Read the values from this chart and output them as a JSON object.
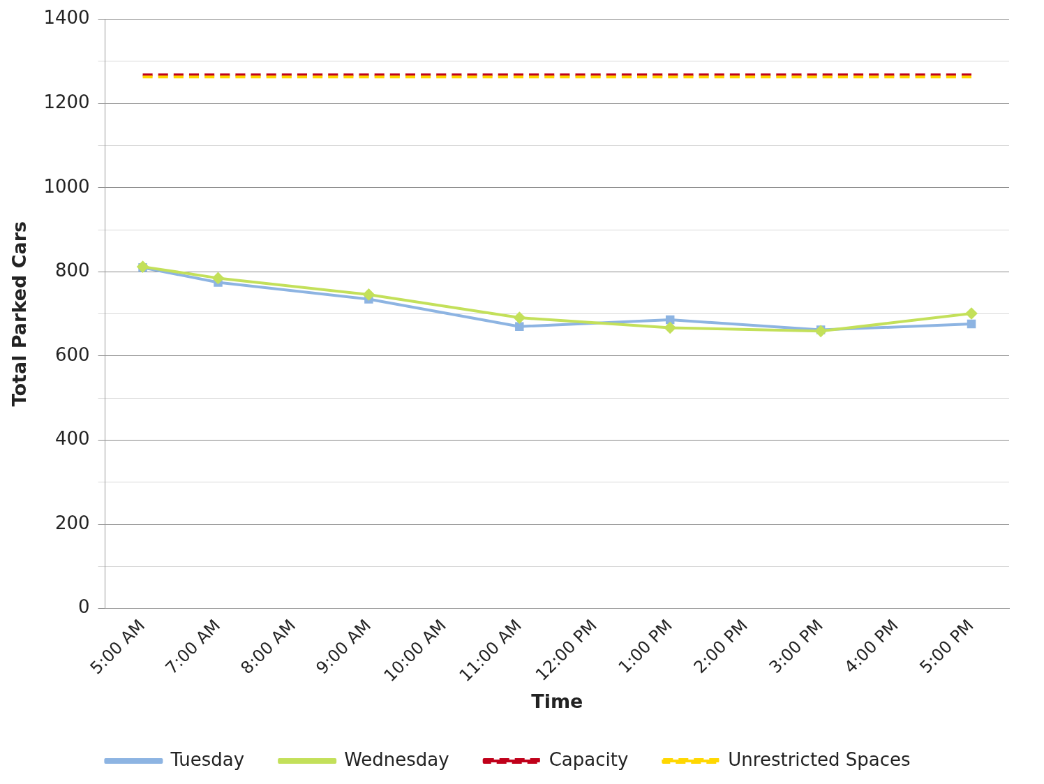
{
  "chart_data": {
    "type": "line",
    "xlabel": "Time",
    "ylabel": "Total Parked Cars",
    "categories": [
      "5:00 AM",
      "7:00 AM",
      "8:00 AM",
      "9:00 AM",
      "10:00 AM",
      "11:00 AM",
      "12:00 PM",
      "1:00 PM",
      "2:00 PM",
      "3:00 PM",
      "4:00 PM",
      "5:00 PM"
    ],
    "series": [
      {
        "name": "Tuesday",
        "color": "#8db4e2",
        "marker": "square",
        "line_style": "solid",
        "values": [
          810,
          775,
          null,
          735,
          null,
          670,
          null,
          686,
          null,
          662,
          null,
          676
        ]
      },
      {
        "name": "Wednesday",
        "color": "#c3e05a",
        "marker": "diamond",
        "line_style": "solid",
        "values": [
          812,
          785,
          null,
          746,
          null,
          691,
          null,
          667,
          null,
          659,
          null,
          701
        ]
      },
      {
        "name": "Capacity",
        "color": "#c0001a",
        "marker": "none",
        "line_style": "dashed",
        "values": [
          1268,
          1268,
          1268,
          1268,
          1268,
          1268,
          1268,
          1268,
          1268,
          1268,
          1268,
          1268
        ]
      },
      {
        "name": "Unrestricted Spaces",
        "color": "#ffd700",
        "marker": "none",
        "line_style": "dashed",
        "values": [
          1263,
          1263,
          1263,
          1263,
          1263,
          1263,
          1263,
          1263,
          1263,
          1263,
          1263,
          1263
        ]
      }
    ],
    "ylim": [
      0,
      1400
    ],
    "yticks": [
      0,
      {
        "value": 100,
        "label": null
      },
      200,
      {
        "value": 300,
        "label": null
      },
      400,
      {
        "value": 500,
        "label": null
      },
      600,
      {
        "value": 700,
        "label": null
      },
      800,
      {
        "value": 900,
        "label": null
      },
      1000,
      {
        "value": 1100,
        "label": null
      },
      1200,
      {
        "value": 1300,
        "label": null
      },
      1400
    ],
    "grid": "y",
    "legend": "bottom"
  }
}
